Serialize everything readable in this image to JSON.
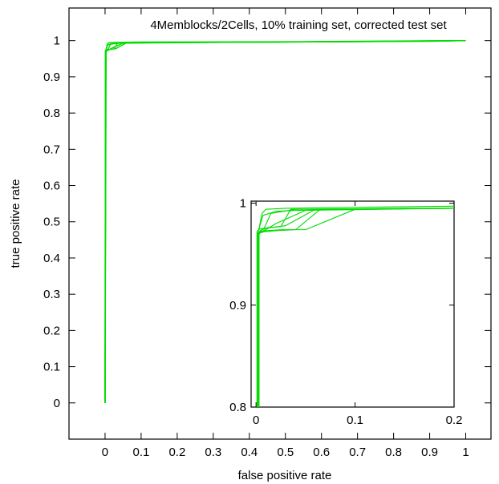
{
  "chart_data": {
    "type": "line",
    "title": "4Memblocks/2Cells, 10% training set, corrected test set",
    "xlabel": "false positive rate",
    "ylabel": "true positive rate",
    "xticks": [
      "0",
      "0.1",
      "0.2",
      "0.3",
      "0.4",
      "0.5",
      "0.6",
      "0.7",
      "0.8",
      "0.9",
      "1"
    ],
    "yticks": [
      "0",
      "0.1",
      "0.2",
      "0.3",
      "0.4",
      "0.5",
      "0.6",
      "0.7",
      "0.8",
      "0.9",
      "1"
    ],
    "xlim": [
      -0.1,
      1.07
    ],
    "ylim": [
      -0.1,
      1.09
    ],
    "grid": false,
    "line_color": "#00dd00",
    "series": [
      {
        "x": [
          0,
          0.001,
          0.003,
          0.006,
          0.01,
          0.03,
          0.1,
          0.5,
          1.0
        ],
        "y": [
          0,
          0.97,
          0.975,
          0.99,
          0.994,
          0.995,
          0.996,
          0.997,
          1.0
        ]
      },
      {
        "x": [
          0,
          0.002,
          0.004,
          0.008,
          0.015,
          0.04,
          0.2,
          0.6,
          1.0
        ],
        "y": [
          0,
          0.965,
          0.973,
          0.975,
          0.99,
          0.994,
          0.995,
          0.997,
          1.0
        ]
      },
      {
        "x": [
          0,
          0.002,
          0.005,
          0.01,
          0.02,
          0.05,
          0.3,
          0.8,
          1.0
        ],
        "y": [
          0,
          0.968,
          0.972,
          0.974,
          0.98,
          0.993,
          0.995,
          0.998,
          1.0
        ]
      },
      {
        "x": [
          0,
          0.003,
          0.006,
          0.012,
          0.025,
          0.035,
          0.15,
          0.7,
          1.0
        ],
        "y": [
          0,
          0.97,
          0.974,
          0.976,
          0.977,
          0.994,
          0.995,
          0.997,
          1.0
        ]
      },
      {
        "x": [
          0,
          0.001,
          0.004,
          0.015,
          0.03,
          0.06,
          0.25,
          0.9,
          1.0
        ],
        "y": [
          0,
          0.972,
          0.975,
          0.976,
          0.978,
          0.994,
          0.995,
          0.998,
          1.0
        ]
      },
      {
        "x": [
          0,
          0.002,
          0.003,
          0.007,
          0.02,
          0.045,
          0.18,
          0.65,
          1.0
        ],
        "y": [
          0,
          0.973,
          0.975,
          0.988,
          0.992,
          0.993,
          0.995,
          0.997,
          1.0
        ]
      }
    ],
    "inset": {
      "xticks": [
        "0",
        "0.1",
        "0.2"
      ],
      "yticks": [
        "0.8",
        "0.9",
        "1"
      ],
      "xlim": [
        -0.005,
        0.2
      ],
      "ylim": [
        0.8,
        1.002
      ],
      "series": [
        {
          "x": [
            0.001,
            0.001,
            0.003,
            0.006,
            0.01,
            0.03,
            0.1,
            0.2
          ],
          "y": [
            0.8,
            0.97,
            0.975,
            0.99,
            0.994,
            0.995,
            0.996,
            0.997
          ]
        },
        {
          "x": [
            0.002,
            0.002,
            0.004,
            0.008,
            0.015,
            0.04,
            0.2
          ],
          "y": [
            0.8,
            0.965,
            0.973,
            0.975,
            0.99,
            0.994,
            0.995
          ]
        },
        {
          "x": [
            0.002,
            0.002,
            0.005,
            0.01,
            0.02,
            0.05,
            0.2
          ],
          "y": [
            0.8,
            0.968,
            0.972,
            0.974,
            0.98,
            0.993,
            0.995
          ]
        },
        {
          "x": [
            0.003,
            0.003,
            0.006,
            0.012,
            0.025,
            0.035,
            0.15,
            0.2
          ],
          "y": [
            0.8,
            0.97,
            0.974,
            0.976,
            0.977,
            0.994,
            0.995,
            0.995
          ]
        },
        {
          "x": [
            0.001,
            0.001,
            0.004,
            0.015,
            0.03,
            0.06,
            0.2
          ],
          "y": [
            0.8,
            0.972,
            0.975,
            0.976,
            0.978,
            0.994,
            0.995
          ]
        },
        {
          "x": [
            0.002,
            0.002,
            0.003,
            0.007,
            0.02,
            0.045,
            0.18,
            0.2
          ],
          "y": [
            0.8,
            0.973,
            0.975,
            0.988,
            0.992,
            0.993,
            0.995,
            0.995
          ]
        },
        {
          "x": [
            0.003,
            0.003,
            0.01,
            0.025,
            0.05,
            0.1,
            0.2
          ],
          "y": [
            0.8,
            0.972,
            0.973,
            0.974,
            0.974,
            0.994,
            0.995
          ]
        },
        {
          "x": [
            0.002,
            0.002,
            0.008,
            0.02,
            0.04,
            0.065,
            0.2
          ],
          "y": [
            0.8,
            0.97,
            0.972,
            0.973,
            0.974,
            0.994,
            0.995
          ]
        }
      ]
    }
  }
}
